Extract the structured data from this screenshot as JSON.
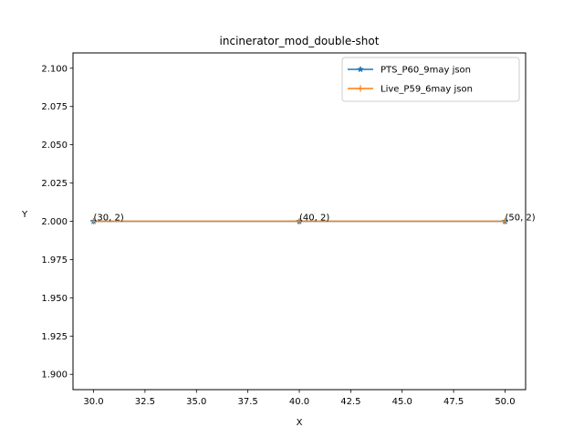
{
  "chart_data": {
    "type": "line",
    "title": "incinerator_mod_double-shot",
    "xlabel": "X",
    "ylabel": "Y",
    "xlim": [
      29.0,
      51.0
    ],
    "ylim": [
      1.89,
      2.11
    ],
    "xticks": [
      30.0,
      32.5,
      35.0,
      37.5,
      40.0,
      42.5,
      45.0,
      47.5,
      50.0
    ],
    "xtick_labels": [
      "30.0",
      "32.5",
      "35.0",
      "37.5",
      "40.0",
      "42.5",
      "45.0",
      "47.5",
      "50.0"
    ],
    "yticks": [
      1.9,
      1.925,
      1.95,
      1.975,
      2.0,
      2.025,
      2.05,
      2.075,
      2.1
    ],
    "ytick_labels": [
      "1.900",
      "1.925",
      "1.950",
      "1.975",
      "2.000",
      "2.025",
      "2.050",
      "2.075",
      "2.100"
    ],
    "grid": false,
    "legend_position": "top-right",
    "series": [
      {
        "name": "PTS_P60_9may json",
        "color": "#1f77b4",
        "marker": "star",
        "x": [
          30,
          40,
          50
        ],
        "y": [
          2,
          2,
          2
        ]
      },
      {
        "name": "Live_P59_6may json",
        "color": "#ff7f0e",
        "marker": "plus",
        "x": [
          30,
          40,
          50
        ],
        "y": [
          2,
          2,
          2
        ]
      }
    ],
    "annotations": [
      {
        "text": "(30, 2)",
        "x": 30,
        "y": 2
      },
      {
        "text": "(40, 2)",
        "x": 40,
        "y": 2
      },
      {
        "text": "(50, 2)",
        "x": 50,
        "y": 2
      }
    ]
  }
}
